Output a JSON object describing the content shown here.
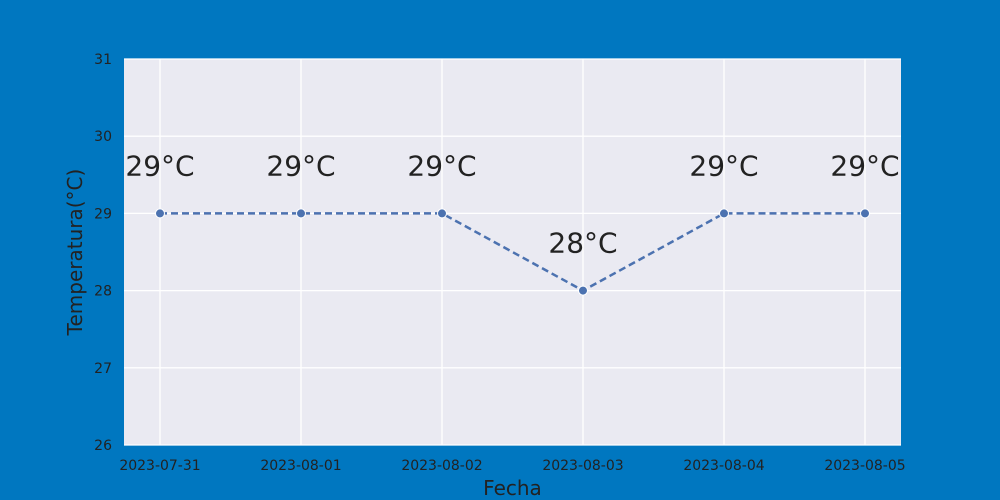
{
  "chart_data": {
    "type": "line",
    "x": [
      "2023-07-31",
      "2023-08-01",
      "2023-08-02",
      "2023-08-03",
      "2023-08-04",
      "2023-08-05"
    ],
    "series": [
      {
        "values": [
          29,
          29,
          29,
          28,
          29,
          29
        ],
        "labels": [
          "29°C",
          "29°C",
          "29°C",
          "28°C",
          "29°C",
          "29°C"
        ]
      }
    ],
    "title": "",
    "xlabel": "Fecha",
    "ylabel": "Temperatura(°C)",
    "ylim": [
      26,
      31
    ],
    "yticks": [
      26,
      27,
      28,
      29,
      30,
      31
    ],
    "grid": true,
    "line_style": "dashed",
    "marker": "circle",
    "colors": {
      "figure_background": "#0077c0",
      "plot_background": "#eaeaf2",
      "grid": "#ffffff",
      "series": "#4c72b0",
      "text": "#222222"
    }
  }
}
